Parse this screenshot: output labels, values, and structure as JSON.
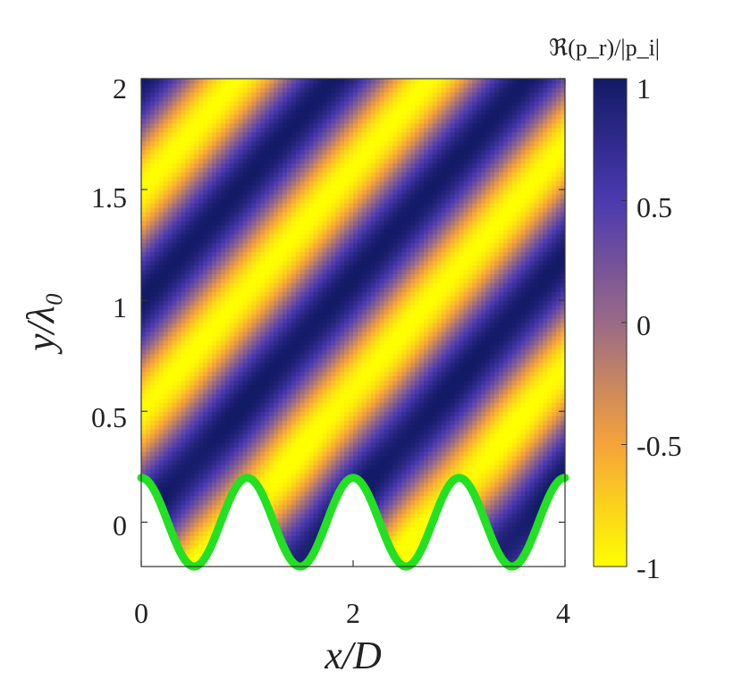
{
  "chart_data": {
    "type": "heatmap",
    "title": "",
    "xlabel": "x/D",
    "ylabel": "y/λ₀",
    "colorbar_label": "ℜ(p_r)/|p_i|",
    "xlim": [
      0,
      4
    ],
    "ylim": [
      -0.2,
      2
    ],
    "clim": [
      -1,
      1
    ],
    "x_ticks": [
      "0",
      "2",
      "4"
    ],
    "y_ticks": [
      "0",
      "0.5",
      "1",
      "1.5",
      "2"
    ],
    "colorbar_ticks": [
      "1",
      "0.5",
      "0",
      "-0.5",
      "-1"
    ],
    "field": {
      "description": "oblique plane-wave stripes",
      "wavelength_y": 1.0,
      "phase_shift_per_D": 0.55,
      "stripes_per_x_period_D": 1
    },
    "boundary": {
      "shape": "cosine",
      "amplitude": 0.2,
      "period": 1,
      "color": "#22e022",
      "x_peaks": [
        0,
        1,
        2,
        3,
        4
      ],
      "x_troughs": [
        0.5,
        1.5,
        2.5,
        3.5
      ]
    },
    "colormap": [
      "#ffff00",
      "#f6a33a",
      "#9a6a86",
      "#4b3ab0",
      "#131a66"
    ]
  }
}
